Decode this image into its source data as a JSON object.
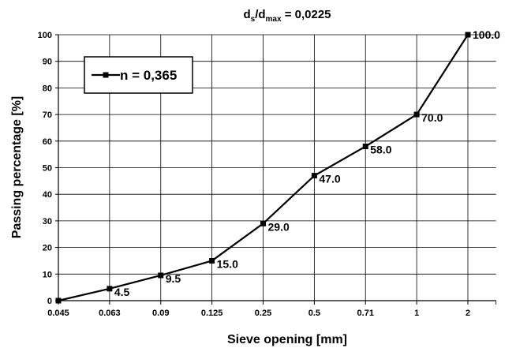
{
  "chart_data": {
    "type": "line",
    "title": {
      "base1": "d",
      "sub1": "s",
      "mid": "/d",
      "sub2": "max",
      "rest": " = 0,0225"
    },
    "xlabel": "Sieve opening [mm]",
    "ylabel": "Passing percentage [%]",
    "categories": [
      "0.045",
      "0.063",
      "0.09",
      "0.125",
      "0.25",
      "0.5",
      "0.71",
      "1",
      "2"
    ],
    "ylim": [
      0,
      100
    ],
    "yticks": [
      0,
      10,
      20,
      30,
      40,
      50,
      60,
      70,
      80,
      90,
      100
    ],
    "grid": true,
    "legend_position": "top-left",
    "series": [
      {
        "name": "n = 0,365",
        "color": "#000000",
        "marker": "square",
        "values": [
          0,
          4.5,
          9.5,
          15.0,
          29.0,
          47.0,
          58.0,
          70.0,
          100.0
        ],
        "labels": [
          "",
          "4.5",
          "9.5",
          "15.0",
          "29.0",
          "47.0",
          "58.0",
          "70.0",
          "100.0"
        ]
      }
    ]
  }
}
